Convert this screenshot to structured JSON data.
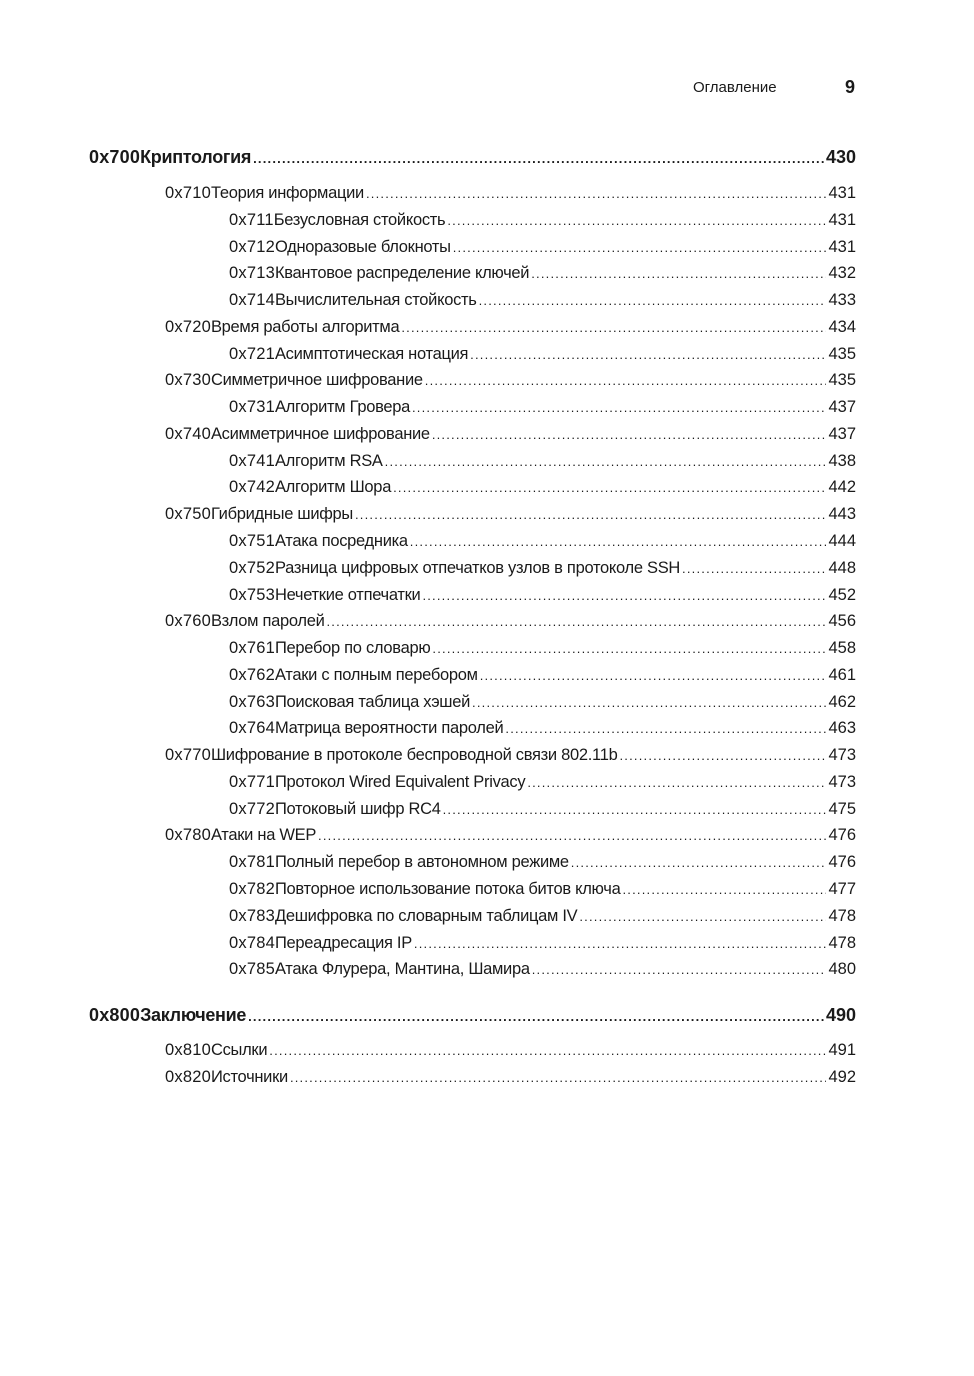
{
  "header": {
    "title": "Оглавление",
    "page": "9"
  },
  "entries": [
    {
      "level": 0,
      "code": "0x700",
      "title": "Криптология",
      "page": "430"
    },
    {
      "level": 1,
      "code": "0x710",
      "title": "Теория информации",
      "page": "431"
    },
    {
      "level": 2,
      "code": "0x711",
      "title": "Безусловная стойкость",
      "page": "431"
    },
    {
      "level": 2,
      "code": "0x712",
      "title": "Одноразовые блокноты",
      "page": "431"
    },
    {
      "level": 2,
      "code": "0x713",
      "title": "Квантовое распределение ключей",
      "page": "432"
    },
    {
      "level": 2,
      "code": "0x714",
      "title": "Вычислительная стойкость",
      "page": "433"
    },
    {
      "level": 1,
      "code": "0x720",
      "title": "Время работы алгоритма",
      "page": "434"
    },
    {
      "level": 2,
      "code": "0x721",
      "title": "Асимптотическая нотация",
      "page": "435"
    },
    {
      "level": 1,
      "code": "0x730",
      "title": "Симметричное шифрование",
      "page": "435"
    },
    {
      "level": 2,
      "code": "0x731",
      "title": "Алгоритм Гровера",
      "page": "437"
    },
    {
      "level": 1,
      "code": "0x740",
      "title": "Асимметричное шифрование",
      "page": "437"
    },
    {
      "level": 2,
      "code": "0x741",
      "title": "Алгоритм RSA",
      "page": "438"
    },
    {
      "level": 2,
      "code": "0x742",
      "title": "Алгоритм Шора",
      "page": "442"
    },
    {
      "level": 1,
      "code": "0x750",
      "title": "Гибридные шифры",
      "page": "443"
    },
    {
      "level": 2,
      "code": "0x751",
      "title": "Атака посредника",
      "page": "444"
    },
    {
      "level": 2,
      "code": "0x752",
      "title": "Разница цифровых отпечатков узлов в протоколе SSH",
      "page": "448"
    },
    {
      "level": 2,
      "code": "0x753",
      "title": "Нечеткие отпечатки",
      "page": "452"
    },
    {
      "level": 1,
      "code": "0x760",
      "title": "Взлом паролей",
      "page": "456"
    },
    {
      "level": 2,
      "code": "0x761",
      "title": "Перебор по словарю",
      "page": "458"
    },
    {
      "level": 2,
      "code": "0x762",
      "title": "Атаки с полным перебором",
      "page": "461"
    },
    {
      "level": 2,
      "code": "0x763",
      "title": "Поисковая таблица хэшей",
      "page": "462"
    },
    {
      "level": 2,
      "code": "0x764",
      "title": "Матрица вероятности паролей",
      "page": "463"
    },
    {
      "level": 1,
      "code": "0x770",
      "title": "Шифрование в протоколе беспроводной связи 802.11b",
      "page": "473"
    },
    {
      "level": 2,
      "code": "0x771",
      "title": "Протокол Wired Equivalent Privacy",
      "page": "473"
    },
    {
      "level": 2,
      "code": "0x772",
      "title": "Потоковый шифр RC4",
      "page": "475"
    },
    {
      "level": 1,
      "code": "0x780",
      "title": "Атаки на WEP",
      "page": "476"
    },
    {
      "level": 2,
      "code": "0x781",
      "title": "Полный перебор в автономном режиме",
      "page": "476"
    },
    {
      "level": 2,
      "code": "0x782",
      "title": "Повторное использование потока битов ключа",
      "page": "477"
    },
    {
      "level": 2,
      "code": "0x783",
      "title": "Дешифровка по словарным таблицам IV",
      "page": "478"
    },
    {
      "level": 2,
      "code": "0x784",
      "title": "Переадресация IP",
      "page": "478"
    },
    {
      "level": 2,
      "code": "0x785",
      "title": "Атака Флурера, Мантина, Шамира",
      "page": "480"
    },
    {
      "level": 0,
      "code": "0x800",
      "title": "Заключение",
      "page": "490"
    },
    {
      "level": 1,
      "code": "0x810",
      "title": "Ссылки",
      "page": "491"
    },
    {
      "level": 1,
      "code": "0x820",
      "title": "Источники",
      "page": "492"
    }
  ]
}
